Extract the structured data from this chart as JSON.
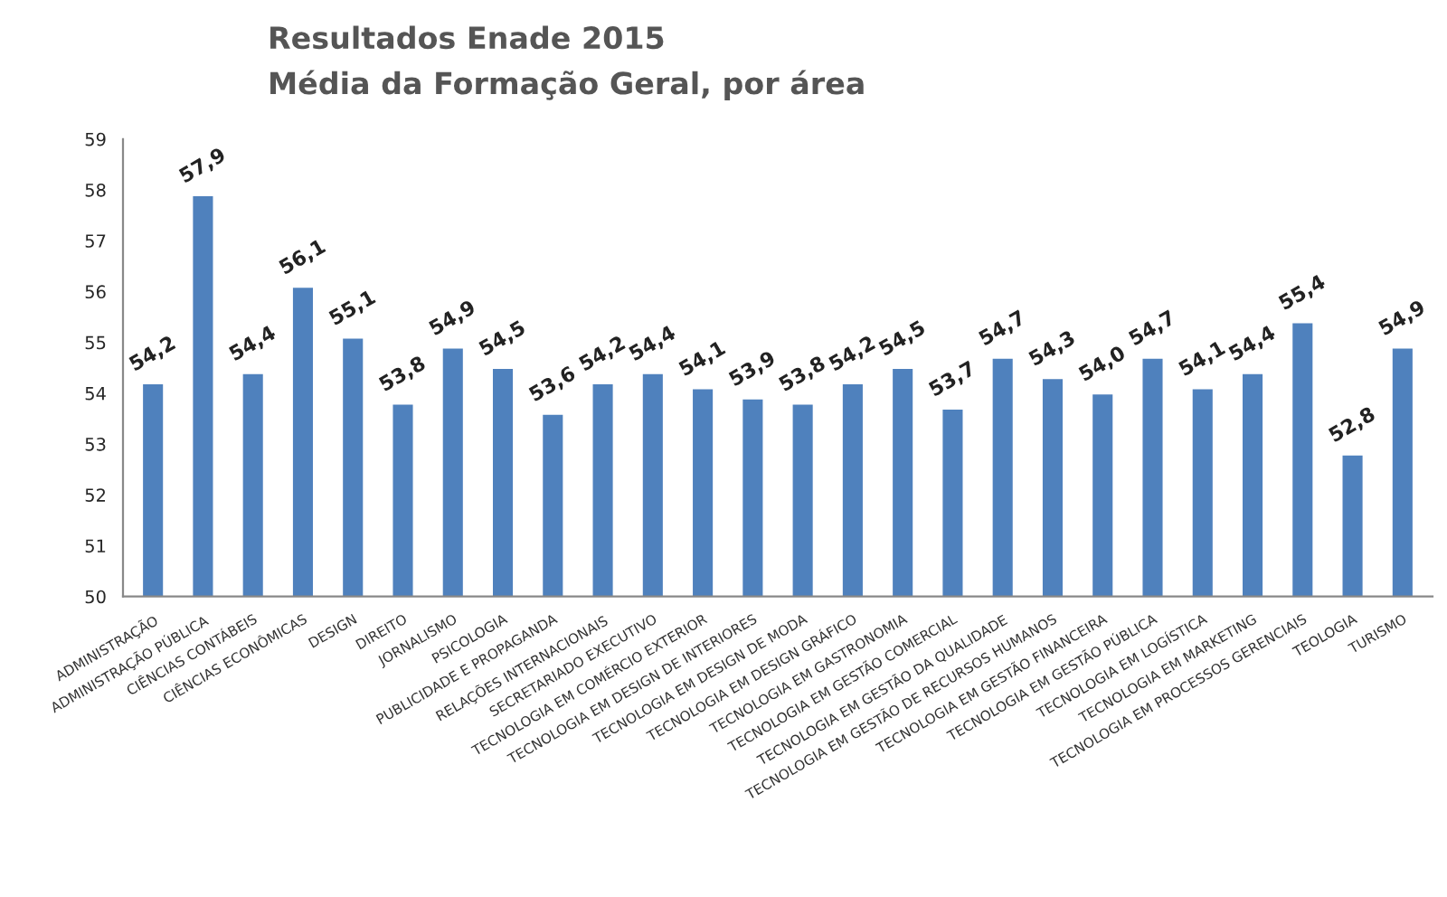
{
  "chart_data": {
    "type": "bar",
    "title": "Resultados Enade 2015",
    "subtitle": "Média da Formação Geral, por área",
    "categories": [
      "ADMINISTRAÇÃO",
      "ADMINISTRAÇÃO PÚBLICA",
      "CIÊNCIAS CONTÁBEIS",
      "CIÊNCIAS ECONÔMICAS",
      "DESIGN",
      "DIREITO",
      "JORNALISMO",
      "PSICOLOGIA",
      "PUBLICIDADE E PROPAGANDA",
      "RELAÇÕES INTERNACIONAIS",
      "SECRETARIADO EXECUTIVO",
      "TECNOLOGIA EM COMÉRCIO EXTERIOR",
      "TECNOLOGIA EM DESIGN DE INTERIORES",
      "TECNOLOGIA EM DESIGN DE MODA",
      "TECNOLOGIA EM DESIGN GRÁFICO",
      "TECNOLOGIA EM GASTRONOMIA",
      "TECNOLOGIA EM GESTÃO COMERCIAL",
      "TECNOLOGIA EM GESTÃO DA QUALIDADE",
      "TECNOLOGIA EM GESTÃO DE RECURSOS HUMANOS",
      "TECNOLOGIA EM GESTÃO FINANCEIRA",
      "TECNOLOGIA EM GESTÃO PÚBLICA",
      "TECNOLOGIA EM LOGÍSTICA",
      "TECNOLOGIA EM MARKETING",
      "TECNOLOGIA EM PROCESSOS GERENCIAIS",
      "TEOLOGIA",
      "TURISMO"
    ],
    "values": [
      54.2,
      57.9,
      54.4,
      56.1,
      55.1,
      53.8,
      54.9,
      54.5,
      53.6,
      54.2,
      54.4,
      54.1,
      53.9,
      53.8,
      54.2,
      54.5,
      53.7,
      54.7,
      54.3,
      54.0,
      54.7,
      54.1,
      54.4,
      55.4,
      52.8,
      54.9
    ],
    "value_labels": [
      "54,2",
      "57,9",
      "54,4",
      "56,1",
      "55,1",
      "53,8",
      "54,9",
      "54,5",
      "53,6",
      "54,2",
      "54,4",
      "54,1",
      "53,9",
      "53,8",
      "54,2",
      "54,5",
      "53,7",
      "54,7",
      "54,3",
      "54,0",
      "54,7",
      "54,1",
      "54,4",
      "55,4",
      "52,8",
      "54,9"
    ],
    "color": "#4f81bd",
    "ylim": [
      50,
      59
    ],
    "yticks": [
      50,
      51,
      52,
      53,
      54,
      55,
      56,
      57,
      58,
      59
    ],
    "grid": false,
    "legend": false
  }
}
